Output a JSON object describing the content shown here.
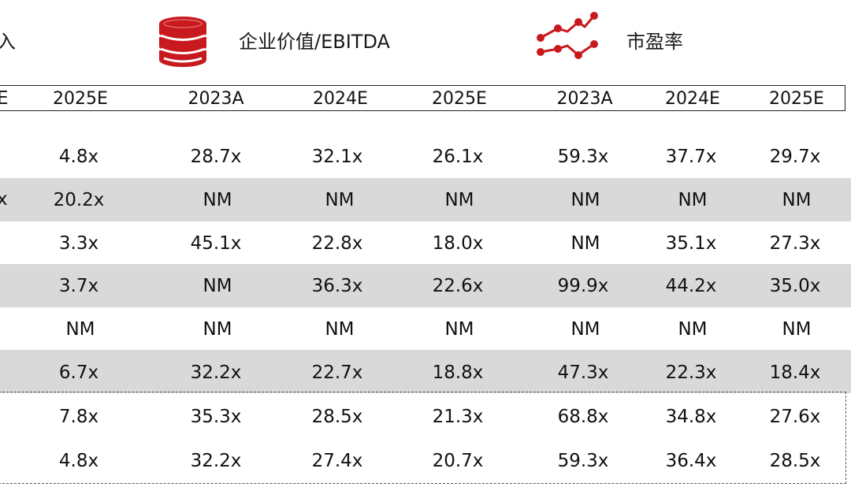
{
  "header": {
    "truncated_left_label": "入",
    "ev_ebitda_label": "企业价值/EBITDA",
    "pe_label": "市盈率",
    "icons": {
      "coins": "coin-stack-icon",
      "trend": "line-trend-icon"
    },
    "accent_color": "#c8191e"
  },
  "columns": {
    "cut": "E",
    "c1": "2025E",
    "c2": "2023A",
    "c3": "2024E",
    "c4": "2025E",
    "c5": "2023A",
    "c6": "2024E",
    "c7": "2025E"
  },
  "rows": [
    {
      "c1": "4.8x",
      "c2": "28.7x",
      "c3": "32.1x",
      "c4": "26.1x",
      "c5": "59.3x",
      "c6": "37.7x",
      "c7": "29.7x"
    },
    {
      "cut": "x",
      "c1": "20.2x",
      "c2": "NM",
      "c3": "NM",
      "c4": "NM",
      "c5": "NM",
      "c6": "NM",
      "c7": "NM"
    },
    {
      "c1": "3.3x",
      "c2": "45.1x",
      "c3": "22.8x",
      "c4": "18.0x",
      "c5": "NM",
      "c6": "35.1x",
      "c7": "27.3x"
    },
    {
      "c1": "3.7x",
      "c2": "NM",
      "c3": "36.3x",
      "c4": "22.6x",
      "c5": "99.9x",
      "c6": "44.2x",
      "c7": "35.0x"
    },
    {
      "c1": "NM",
      "c2": "NM",
      "c3": "NM",
      "c4": "NM",
      "c5": "NM",
      "c6": "NM",
      "c7": "NM"
    },
    {
      "c1": "6.7x",
      "c2": "32.2x",
      "c3": "22.7x",
      "c4": "18.8x",
      "c5": "47.3x",
      "c6": "22.3x",
      "c7": "18.4x"
    }
  ],
  "summary": [
    {
      "c1": "7.8x",
      "c2": "35.3x",
      "c3": "28.5x",
      "c4": "21.3x",
      "c5": "68.8x",
      "c6": "34.8x",
      "c7": "27.6x"
    },
    {
      "c1": "4.8x",
      "c2": "32.2x",
      "c3": "27.4x",
      "c4": "20.7x",
      "c5": "59.3x",
      "c6": "36.4x",
      "c7": "28.5x"
    }
  ]
}
